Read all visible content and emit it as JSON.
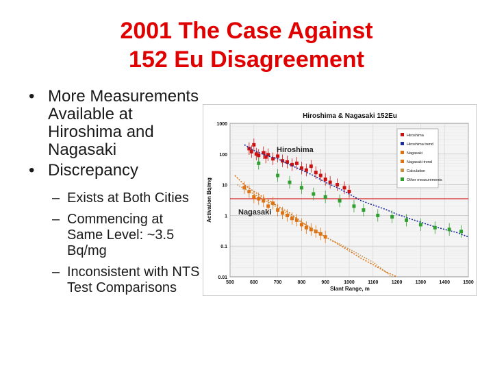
{
  "slide": {
    "title_line1": "2001 The Case Against",
    "title_line2": "152 Eu Disagreement",
    "title_color": "#e00000",
    "bullets": [
      {
        "text": "More Measurements Available at Hiroshima and Nagasaki"
      },
      {
        "text": "Discrepancy",
        "sub": [
          "Exists at Both Cities",
          "Commencing at Same Level: ~3.5 Bq/mg",
          "Inconsistent with NTS Test Comparisons"
        ]
      }
    ]
  },
  "chart_data": {
    "type": "scatter",
    "title": "Hiroshima & Nagasaki 152Eu",
    "xlabel": "Slant Range, m",
    "ylabel": "Activation Bq/mg",
    "xlim": [
      500,
      1500
    ],
    "ylim": [
      0.01,
      1000
    ],
    "y_scale": "log",
    "x_ticks": [
      500,
      600,
      700,
      800,
      900,
      1000,
      1100,
      1200,
      1300,
      1400,
      1500
    ],
    "y_ticks": [
      {
        "value": 1000,
        "label": "1000"
      },
      {
        "value": 100,
        "label": "100"
      },
      {
        "value": 10,
        "label": "10"
      },
      {
        "value": 1,
        "label": "1"
      },
      {
        "value": 0.1,
        "label": "0.1"
      },
      {
        "value": 0.01,
        "label": "0.01"
      }
    ],
    "grid": true,
    "annotations": [
      "Hiroshima",
      "Nagasaki"
    ],
    "legend_placement": "top-right",
    "reference_line": {
      "y": 3.5,
      "color": "#cc0000"
    },
    "series": [
      {
        "name": "Hiroshima",
        "color": "#cc1111",
        "points": [
          [
            580,
            150
          ],
          [
            590,
            120
          ],
          [
            600,
            200
          ],
          [
            610,
            100
          ],
          [
            620,
            90
          ],
          [
            640,
            110
          ],
          [
            650,
            80
          ],
          [
            660,
            95
          ],
          [
            680,
            70
          ],
          [
            700,
            85
          ],
          [
            720,
            60
          ],
          [
            740,
            55
          ],
          [
            760,
            45
          ],
          [
            780,
            50
          ],
          [
            800,
            35
          ],
          [
            820,
            30
          ],
          [
            840,
            40
          ],
          [
            860,
            25
          ],
          [
            880,
            20
          ],
          [
            900,
            15
          ],
          [
            920,
            12
          ],
          [
            950,
            10
          ],
          [
            980,
            8
          ],
          [
            1000,
            6
          ]
        ]
      },
      {
        "name": "Hiroshima trend",
        "color": "#1a2aa0",
        "points": [
          [
            560,
            200
          ],
          [
            600,
            130
          ],
          [
            650,
            90
          ],
          [
            700,
            70
          ],
          [
            750,
            45
          ],
          [
            800,
            30
          ],
          [
            850,
            20
          ],
          [
            900,
            12
          ],
          [
            950,
            8
          ],
          [
            1000,
            5
          ],
          [
            1050,
            3
          ],
          [
            1100,
            2.2
          ],
          [
            1150,
            1.6
          ],
          [
            1200,
            1.1
          ],
          [
            1250,
            0.8
          ],
          [
            1300,
            0.6
          ],
          [
            1350,
            0.45
          ],
          [
            1400,
            0.35
          ],
          [
            1450,
            0.28
          ],
          [
            1500,
            0.2
          ]
        ]
      },
      {
        "name": "Nagasaki",
        "color": "#e07010",
        "points": [
          [
            560,
            8
          ],
          [
            580,
            6
          ],
          [
            600,
            4
          ],
          [
            620,
            3.5
          ],
          [
            640,
            3
          ],
          [
            660,
            2
          ],
          [
            680,
            2.5
          ],
          [
            700,
            1.5
          ],
          [
            720,
            1.2
          ],
          [
            740,
            1
          ],
          [
            760,
            0.8
          ],
          [
            780,
            0.7
          ],
          [
            800,
            0.5
          ],
          [
            820,
            0.4
          ],
          [
            840,
            0.35
          ],
          [
            860,
            0.3
          ],
          [
            880,
            0.25
          ],
          [
            900,
            0.2
          ]
        ]
      },
      {
        "name": "Nagasaki trend",
        "color": "#e07010",
        "points": [
          [
            520,
            20
          ],
          [
            560,
            10
          ],
          [
            600,
            6
          ],
          [
            650,
            3.5
          ],
          [
            700,
            2
          ],
          [
            750,
            1.2
          ],
          [
            800,
            0.6
          ],
          [
            850,
            0.35
          ],
          [
            900,
            0.2
          ],
          [
            950,
            0.12
          ],
          [
            1000,
            0.07
          ],
          [
            1050,
            0.04
          ],
          [
            1100,
            0.025
          ],
          [
            1150,
            0.015
          ],
          [
            1200,
            0.01
          ]
        ]
      },
      {
        "name": "Calculation",
        "color": "#c89040",
        "points": [
          [
            530,
            10
          ],
          [
            600,
            5
          ],
          [
            700,
            1.8
          ],
          [
            800,
            0.6
          ],
          [
            900,
            0.2
          ],
          [
            1000,
            0.08
          ],
          [
            1100,
            0.03
          ],
          [
            1180,
            0.01
          ]
        ]
      },
      {
        "name": "Other measurements",
        "color": "#30a030",
        "points": [
          [
            620,
            50
          ],
          [
            700,
            20
          ],
          [
            750,
            12
          ],
          [
            800,
            8
          ],
          [
            850,
            5
          ],
          [
            900,
            4
          ],
          [
            960,
            3
          ],
          [
            1020,
            2
          ],
          [
            1060,
            1.5
          ],
          [
            1120,
            1
          ],
          [
            1180,
            0.9
          ],
          [
            1240,
            0.7
          ],
          [
            1300,
            0.5
          ],
          [
            1360,
            0.4
          ],
          [
            1420,
            0.35
          ],
          [
            1470,
            0.3
          ]
        ]
      }
    ]
  }
}
